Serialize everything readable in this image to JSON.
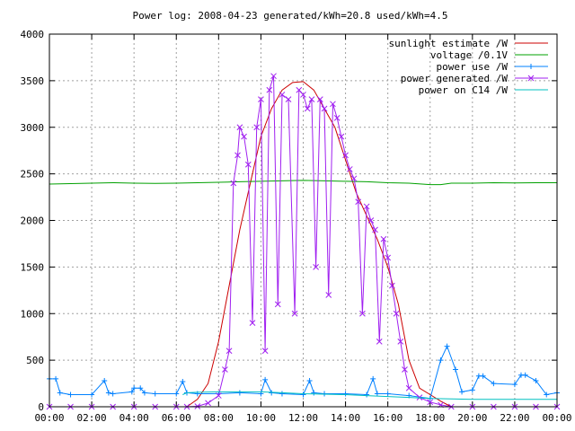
{
  "chart_data": {
    "type": "line",
    "title": "Power log: 2008-04-23 generated/kWh=20.8 used/kWh=4.5",
    "xlabel": "",
    "ylabel": "",
    "xlim_hours": [
      0,
      24
    ],
    "ylim": [
      0,
      4000
    ],
    "x_ticks": [
      "00:00",
      "02:00",
      "04:00",
      "06:00",
      "08:00",
      "10:00",
      "12:00",
      "14:00",
      "16:00",
      "18:00",
      "20:00",
      "22:00",
      "00:00"
    ],
    "y_ticks": [
      "0",
      "500",
      "1000",
      "1500",
      "2000",
      "2500",
      "3000",
      "3500",
      "4000"
    ],
    "grid": true,
    "legend_position": "top-right",
    "series": [
      {
        "name": "sunlight estimate /W",
        "color": "#cc0000",
        "marker": "none",
        "points": [
          [
            6.5,
            0
          ],
          [
            7,
            80
          ],
          [
            7.5,
            250
          ],
          [
            8,
            700
          ],
          [
            8.5,
            1300
          ],
          [
            9,
            1900
          ],
          [
            9.5,
            2400
          ],
          [
            10,
            2900
          ],
          [
            10.5,
            3200
          ],
          [
            11,
            3400
          ],
          [
            11.5,
            3480
          ],
          [
            12,
            3490
          ],
          [
            12.5,
            3400
          ],
          [
            13,
            3200
          ],
          [
            13.5,
            3000
          ],
          [
            14,
            2650
          ],
          [
            14.5,
            2300
          ],
          [
            15,
            2050
          ],
          [
            15.5,
            1800
          ],
          [
            16,
            1500
          ],
          [
            16.5,
            1100
          ],
          [
            17,
            500
          ],
          [
            17.5,
            200
          ],
          [
            18,
            130
          ],
          [
            18.5,
            60
          ],
          [
            19,
            0
          ]
        ]
      },
      {
        "name": "voltage /0.1V",
        "color": "#00a000",
        "marker": "none",
        "points": [
          [
            0,
            2390
          ],
          [
            1,
            2395
          ],
          [
            2,
            2400
          ],
          [
            3,
            2405
          ],
          [
            4,
            2400
          ],
          [
            5,
            2398
          ],
          [
            6,
            2400
          ],
          [
            7,
            2405
          ],
          [
            8,
            2410
          ],
          [
            9,
            2415
          ],
          [
            10,
            2420
          ],
          [
            11,
            2425
          ],
          [
            12,
            2430
          ],
          [
            13,
            2425
          ],
          [
            14,
            2420
          ],
          [
            15,
            2415
          ],
          [
            16,
            2405
          ],
          [
            17,
            2400
          ],
          [
            18,
            2385
          ],
          [
            18.5,
            2385
          ],
          [
            19,
            2400
          ],
          [
            20,
            2400
          ],
          [
            21,
            2405
          ],
          [
            22,
            2402
          ],
          [
            23,
            2405
          ],
          [
            24,
            2405
          ]
        ]
      },
      {
        "name": "power use /W",
        "color": "#0080ff",
        "marker": "plus",
        "points": [
          [
            0,
            300
          ],
          [
            0.3,
            300
          ],
          [
            0.5,
            150
          ],
          [
            1,
            130
          ],
          [
            2,
            130
          ],
          [
            2.6,
            280
          ],
          [
            2.8,
            150
          ],
          [
            3,
            140
          ],
          [
            3.9,
            160
          ],
          [
            4,
            200
          ],
          [
            4.3,
            200
          ],
          [
            4.5,
            150
          ],
          [
            5,
            140
          ],
          [
            6,
            140
          ],
          [
            6.3,
            270
          ],
          [
            6.5,
            150
          ],
          [
            7,
            140
          ],
          [
            8,
            140
          ],
          [
            9,
            150
          ],
          [
            10,
            140
          ],
          [
            10.2,
            290
          ],
          [
            10.5,
            150
          ],
          [
            11,
            140
          ],
          [
            12,
            130
          ],
          [
            12.3,
            280
          ],
          [
            12.5,
            150
          ],
          [
            13,
            140
          ],
          [
            14,
            140
          ],
          [
            15,
            130
          ],
          [
            15.3,
            300
          ],
          [
            15.5,
            140
          ],
          [
            16,
            140
          ],
          [
            17,
            120
          ],
          [
            18,
            90
          ],
          [
            18.5,
            500
          ],
          [
            18.8,
            650
          ],
          [
            19.2,
            400
          ],
          [
            19.5,
            160
          ],
          [
            20,
            180
          ],
          [
            20.3,
            330
          ],
          [
            20.5,
            330
          ],
          [
            21,
            250
          ],
          [
            22,
            240
          ],
          [
            22.3,
            340
          ],
          [
            22.5,
            340
          ],
          [
            23,
            280
          ],
          [
            23.5,
            130
          ],
          [
            24,
            150
          ]
        ]
      },
      {
        "name": "power generated /W",
        "color": "#a020f0",
        "marker": "cross",
        "points": [
          [
            0,
            0
          ],
          [
            1,
            0
          ],
          [
            2,
            0
          ],
          [
            3,
            0
          ],
          [
            4,
            0
          ],
          [
            5,
            0
          ],
          [
            6,
            0
          ],
          [
            6.5,
            0
          ],
          [
            7,
            5
          ],
          [
            7.5,
            40
          ],
          [
            8,
            120
          ],
          [
            8.3,
            400
          ],
          [
            8.5,
            600
          ],
          [
            8.7,
            2400
          ],
          [
            8.9,
            2700
          ],
          [
            9,
            3000
          ],
          [
            9.2,
            2900
          ],
          [
            9.4,
            2600
          ],
          [
            9.6,
            900
          ],
          [
            9.8,
            3000
          ],
          [
            10,
            3300
          ],
          [
            10.2,
            600
          ],
          [
            10.4,
            3400
          ],
          [
            10.6,
            3550
          ],
          [
            10.8,
            1100
          ],
          [
            11,
            3350
          ],
          [
            11.3,
            3300
          ],
          [
            11.6,
            1000
          ],
          [
            11.8,
            3400
          ],
          [
            12,
            3350
          ],
          [
            12.2,
            3200
          ],
          [
            12.4,
            3300
          ],
          [
            12.6,
            1500
          ],
          [
            12.8,
            3300
          ],
          [
            13,
            3200
          ],
          [
            13.2,
            1200
          ],
          [
            13.4,
            3250
          ],
          [
            13.6,
            3100
          ],
          [
            13.8,
            2900
          ],
          [
            14,
            2700
          ],
          [
            14.2,
            2550
          ],
          [
            14.4,
            2450
          ],
          [
            14.6,
            2200
          ],
          [
            14.8,
            1000
          ],
          [
            15,
            2150
          ],
          [
            15.2,
            2000
          ],
          [
            15.4,
            1900
          ],
          [
            15.6,
            700
          ],
          [
            15.8,
            1800
          ],
          [
            16,
            1600
          ],
          [
            16.2,
            1300
          ],
          [
            16.4,
            1000
          ],
          [
            16.6,
            700
          ],
          [
            16.8,
            400
          ],
          [
            17,
            200
          ],
          [
            17.5,
            100
          ],
          [
            18,
            50
          ],
          [
            18.5,
            20
          ],
          [
            19,
            0
          ],
          [
            20,
            0
          ],
          [
            21,
            0
          ],
          [
            22,
            0
          ],
          [
            23,
            0
          ],
          [
            24,
            0
          ]
        ]
      },
      {
        "name": "power on C14 /W",
        "color": "#00c0c0",
        "marker": "none",
        "points": [
          [
            6.3,
            130
          ],
          [
            6.5,
            150
          ],
          [
            7,
            155
          ],
          [
            8,
            160
          ],
          [
            9,
            160
          ],
          [
            10,
            160
          ],
          [
            11,
            150
          ],
          [
            12,
            140
          ],
          [
            13,
            135
          ],
          [
            14,
            130
          ],
          [
            15,
            120
          ],
          [
            16,
            110
          ],
          [
            17,
            100
          ],
          [
            18,
            90
          ],
          [
            19,
            85
          ],
          [
            20,
            80
          ],
          [
            21,
            80
          ],
          [
            22,
            80
          ],
          [
            23,
            80
          ],
          [
            24,
            80
          ]
        ]
      }
    ]
  }
}
